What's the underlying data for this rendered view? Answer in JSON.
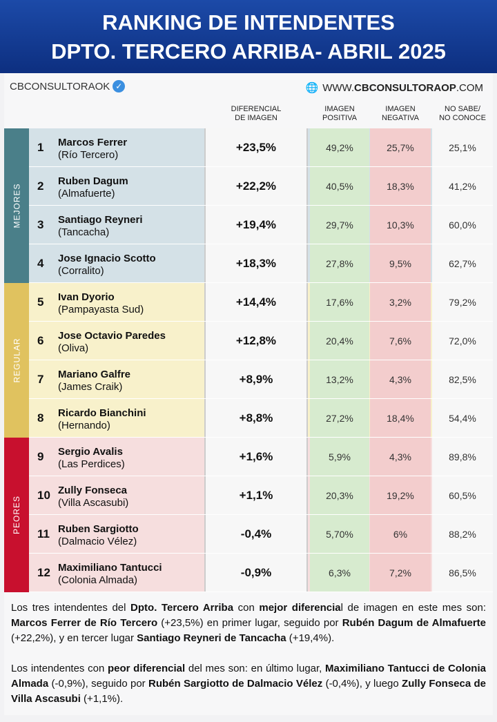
{
  "header": {
    "line1": "RANKING DE INTENDENTES",
    "line2": "DPTO. TERCERO ARRIBA- ABRIL 2025"
  },
  "brand": {
    "handle": "CBCONSULTORAOK",
    "verified_icon": "verified-badge-icon",
    "web_prefix": "WWW.",
    "web_bold": "CBCONSULTORAOP",
    "web_suffix": ".COM",
    "globe_icon": "globe-icon"
  },
  "columns": {
    "diff": [
      "DIFERENCIAL",
      "DE IMAGEN"
    ],
    "pos": [
      "IMAGEN",
      "POSITIVA"
    ],
    "neg": [
      "IMAGEN",
      "NEGATIVA"
    ],
    "ns": [
      "NO SABE/",
      "NO CONOCE"
    ]
  },
  "groups": [
    {
      "label": "MEJORES",
      "color": "#4a7f89",
      "bg": "#d4e1e7"
    },
    {
      "label": "REGULAR",
      "color": "#e0c25f",
      "bg": "#f8f1cb"
    },
    {
      "label": "PEORES",
      "color": "#c8102e",
      "bg": "#f6dede"
    }
  ],
  "rows": [
    {
      "rank": "1",
      "name": "Marcos Ferrer",
      "town": "(Río Tercero)",
      "diff": "+23,5%",
      "pos": "49,2%",
      "neg": "25,7%",
      "ns": "25,1%",
      "group": 0
    },
    {
      "rank": "2",
      "name": "Ruben Dagum",
      "town": "(Almafuerte)",
      "diff": "+22,2%",
      "pos": "40,5%",
      "neg": "18,3%",
      "ns": "41,2%",
      "group": 0
    },
    {
      "rank": "3",
      "name": "Santiago Reyneri",
      "town": "(Tancacha)",
      "diff": "+19,4%",
      "pos": "29,7%",
      "neg": "10,3%",
      "ns": "60,0%",
      "group": 0
    },
    {
      "rank": "4",
      "name": "Jose Ignacio Scotto",
      "town": "(Corralito)",
      "diff": "+18,3%",
      "pos": "27,8%",
      "neg": "9,5%",
      "ns": "62,7%",
      "group": 0
    },
    {
      "rank": "5",
      "name": "Ivan Dyorio",
      "town": "(Pampayasta Sud)",
      "diff": "+14,4%",
      "pos": "17,6%",
      "neg": "3,2%",
      "ns": "79,2%",
      "group": 1
    },
    {
      "rank": "6",
      "name": "Jose Octavio Paredes",
      "town": "(Oliva)",
      "diff": "+12,8%",
      "pos": "20,4%",
      "neg": "7,6%",
      "ns": "72,0%",
      "group": 1
    },
    {
      "rank": "7",
      "name": "Mariano Galfre",
      "town": "(James Craik)",
      "diff": "+8,9%",
      "pos": "13,2%",
      "neg": "4,3%",
      "ns": "82,5%",
      "group": 1
    },
    {
      "rank": "8",
      "name": "Ricardo Bianchini",
      "town": "(Hernando)",
      "diff": "+8,8%",
      "pos": "27,2%",
      "neg": "18,4%",
      "ns": "54,4%",
      "group": 1
    },
    {
      "rank": "9",
      "name": "Sergio Avalis",
      "town": "(Las Perdices)",
      "diff": "+1,6%",
      "pos": "5,9%",
      "neg": "4,3%",
      "ns": "89,8%",
      "group": 2
    },
    {
      "rank": "10",
      "name": "Zully Fonseca",
      "town": "(Villa Ascasubi)",
      "diff": "+1,1%",
      "pos": "20,3%",
      "neg": "19,2%",
      "ns": "60,5%",
      "group": 2
    },
    {
      "rank": "11",
      "name": "Ruben Sargiotto",
      "town": "(Dalmacio Vélez)",
      "diff": "-0,4%",
      "pos": "5,70%",
      "neg": "6%",
      "ns": "88,2%",
      "group": 2
    },
    {
      "rank": "12",
      "name": "Maximiliano Tantucci",
      "town": "(Colonia Almada)",
      "diff": "-0,9%",
      "pos": "6,3%",
      "neg": "7,2%",
      "ns": "86,5%",
      "group": 2
    }
  ],
  "paragraphs": [
    [
      [
        "Los tres intendentes del ",
        0
      ],
      [
        "Dpto. Tercero Arriba",
        1
      ],
      [
        " con ",
        0
      ],
      [
        "mejor diferencia",
        1
      ],
      [
        "l de imagen en este mes son: ",
        0
      ],
      [
        "Marcos Ferrer de Río Tercero",
        1
      ],
      [
        " (+23,5%) en primer lugar, seguido por ",
        0
      ],
      [
        "Rubén Dagum de Almafuerte",
        1
      ],
      [
        " (+22,2%), y en tercer lugar ",
        0
      ],
      [
        "Santiago Reyneri de Tancacha",
        1
      ],
      [
        " (+19,4%).",
        0
      ]
    ],
    [
      [
        "Los intendentes con ",
        0
      ],
      [
        "peor diferencial",
        1
      ],
      [
        " del mes son: en último lugar, ",
        0
      ],
      [
        "Maximiliano Tantucci de Colonia Almada",
        1
      ],
      [
        " (-0,9%), seguido por ",
        0
      ],
      [
        "Rubén Sargiotto de Dalmacio Vélez",
        1
      ],
      [
        " (-0,4%), y luego ",
        0
      ],
      [
        "Zully Fonseca de Villa Ascasubi",
        1
      ],
      [
        " (+1,1%).",
        0
      ]
    ]
  ]
}
